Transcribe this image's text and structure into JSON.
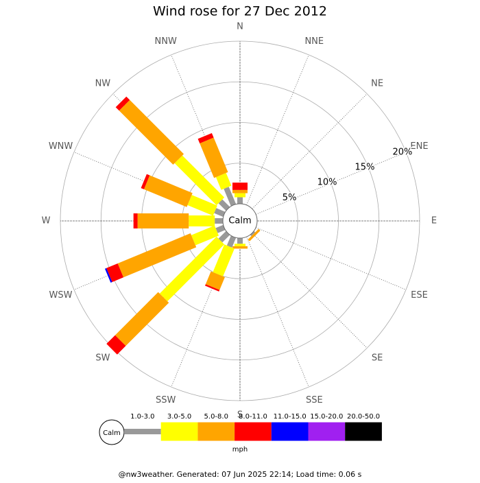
{
  "chart_data": {
    "type": "windrose",
    "title": "Wind rose for 27 Dec 2012",
    "categories": [
      "N",
      "NNE",
      "NE",
      "ENE",
      "E",
      "ESE",
      "SE",
      "SSE",
      "S",
      "SSW",
      "SW",
      "WSW",
      "W",
      "WNW",
      "NW",
      "NNW"
    ],
    "center_label": "Calm",
    "rlim": [
      0,
      20
    ],
    "rticks": [
      {
        "value": 5,
        "label": "5%"
      },
      {
        "value": 10,
        "label": "10%"
      },
      {
        "value": 15,
        "label": "15%"
      },
      {
        "value": 20,
        "label": "20%"
      }
    ],
    "series": [
      {
        "name": "1.0-3.0",
        "color": "#999999",
        "values": [
          0.8,
          0,
          0,
          0,
          0,
          0,
          0.2,
          0,
          0.7,
          1.3,
          1.3,
          1.0,
          1.0,
          1.2,
          1.3,
          2.3
        ]
      },
      {
        "name": "3.0-5.0",
        "color": "#ffff00",
        "values": [
          0.5,
          0,
          0,
          0,
          0,
          0,
          0,
          0,
          0.3,
          3.7,
          9.9,
          3.1,
          3.2,
          3.4,
          7.3,
          1.7
        ]
      },
      {
        "name": "5.0-8.0",
        "color": "#ffa500",
        "values": [
          0.4,
          0,
          0,
          0,
          0,
          0,
          0.3,
          0,
          0.3,
          1.7,
          7.5,
          9.7,
          6.3,
          5.7,
          9.4,
          4.6
        ]
      },
      {
        "name": "8.0-11.0",
        "color": "#ff0000",
        "values": [
          0.9,
          0,
          0,
          0,
          0,
          0,
          0,
          0,
          0,
          0.2,
          1.5,
          1.5,
          0.5,
          0.4,
          0.6,
          0.6
        ]
      },
      {
        "name": "11.0-15.0",
        "color": "#0000ff",
        "values": [
          0,
          0,
          0,
          0,
          0,
          0,
          0,
          0,
          0,
          0,
          0,
          0.2,
          0,
          0,
          0,
          0
        ]
      },
      {
        "name": "15.0-20.0",
        "color": "#a020f0",
        "values": [
          0,
          0,
          0,
          0,
          0,
          0,
          0,
          0,
          0,
          0,
          0,
          0,
          0,
          0,
          0,
          0
        ]
      },
      {
        "name": "20.0-50.0",
        "color": "#000000",
        "values": [
          0,
          0,
          0,
          0,
          0,
          0,
          0,
          0,
          0,
          0,
          0,
          0,
          0,
          0,
          0,
          0
        ]
      }
    ],
    "legend_unit": "mph",
    "footer": "@nw3weather. Generated: 07 Jun 2025 22:14; Load time: 0.06 s"
  }
}
